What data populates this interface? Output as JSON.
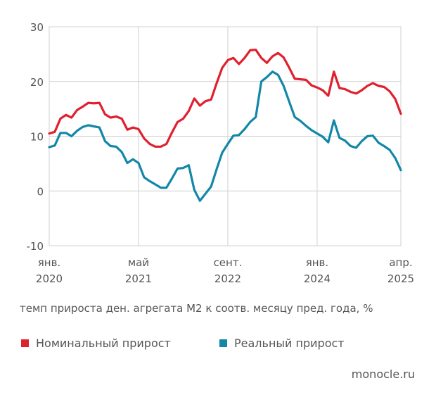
{
  "chart_data": {
    "type": "line",
    "caption": "темп прироста ден. агрегата М2 к соотв. месяцу пред. года, %",
    "ylim": [
      -10,
      30
    ],
    "y_ticks": [
      "30",
      "20",
      "10",
      "0",
      "-10"
    ],
    "x_ticks": [
      {
        "month": "янв.",
        "year": "2020"
      },
      {
        "month": "май",
        "year": "2021"
      },
      {
        "month": "сент.",
        "year": "2022"
      },
      {
        "month": "янв.",
        "year": "2024"
      },
      {
        "month": "апр.",
        "year": "2025"
      }
    ],
    "x_dates": [
      "2020-01",
      "2020-02",
      "2020-03",
      "2020-04",
      "2020-05",
      "2020-06",
      "2020-07",
      "2020-08",
      "2020-09",
      "2020-10",
      "2020-11",
      "2020-12",
      "2021-01",
      "2021-02",
      "2021-03",
      "2021-04",
      "2021-05",
      "2021-06",
      "2021-07",
      "2021-08",
      "2021-09",
      "2021-10",
      "2021-11",
      "2021-12",
      "2022-01",
      "2022-02",
      "2022-03",
      "2022-04",
      "2022-05",
      "2022-06",
      "2022-07",
      "2022-08",
      "2022-09",
      "2022-10",
      "2022-11",
      "2022-12",
      "2023-01",
      "2023-02",
      "2023-03",
      "2023-04",
      "2023-05",
      "2023-06",
      "2023-07",
      "2023-08",
      "2023-09",
      "2023-10",
      "2023-11",
      "2023-12",
      "2024-01",
      "2024-02",
      "2024-03",
      "2024-04",
      "2024-05",
      "2024-06",
      "2024-07",
      "2024-08",
      "2024-09",
      "2024-10",
      "2024-11",
      "2024-12",
      "2025-01",
      "2025-02",
      "2025-03",
      "2025-04"
    ],
    "grid": true,
    "series": [
      {
        "name": "Номинальный прирост",
        "color": "#e0202e",
        "values": [
          10.5,
          10.8,
          13.2,
          13.9,
          13.4,
          14.8,
          15.4,
          16.1,
          16.0,
          16.1,
          14.0,
          13.4,
          13.6,
          13.2,
          11.2,
          11.6,
          11.3,
          9.6,
          8.6,
          8.1,
          8.1,
          8.6,
          10.7,
          12.6,
          13.2,
          14.6,
          16.9,
          15.6,
          16.4,
          16.7,
          19.7,
          22.5,
          23.9,
          24.3,
          23.2,
          24.3,
          25.7,
          25.8,
          24.3,
          23.4,
          24.6,
          25.2,
          24.4,
          22.5,
          20.5,
          20.4,
          20.3,
          19.3,
          18.9,
          18.4,
          17.4,
          21.8,
          18.8,
          18.6,
          18.1,
          17.8,
          18.4,
          19.2,
          19.7,
          19.2,
          19.0,
          18.2,
          16.8,
          14.1
        ]
      },
      {
        "name": "Реальный прирост",
        "color": "#1287a8",
        "values": [
          8.0,
          8.3,
          10.6,
          10.6,
          10.0,
          11.0,
          11.7,
          12.0,
          11.8,
          11.6,
          9.1,
          8.2,
          8.1,
          7.1,
          5.1,
          5.8,
          5.1,
          2.5,
          1.8,
          1.2,
          0.6,
          0.6,
          2.3,
          4.1,
          4.2,
          4.7,
          0.2,
          -1.8,
          -0.5,
          0.8,
          4.0,
          7.0,
          8.6,
          10.1,
          10.2,
          11.3,
          12.6,
          13.5,
          20.0,
          20.8,
          21.8,
          21.2,
          19.2,
          16.3,
          13.5,
          12.8,
          11.9,
          11.1,
          10.5,
          9.9,
          8.9,
          12.9,
          9.7,
          9.2,
          8.2,
          7.9,
          9.1,
          10.0,
          10.1,
          8.8,
          8.2,
          7.5,
          6.0,
          3.8
        ]
      }
    ]
  },
  "legend": {
    "items": [
      {
        "label": "Номинальный прирост",
        "color": "#e0202e"
      },
      {
        "label": "Реальный прирост",
        "color": "#1287a8"
      }
    ]
  },
  "source": "monocle.ru"
}
